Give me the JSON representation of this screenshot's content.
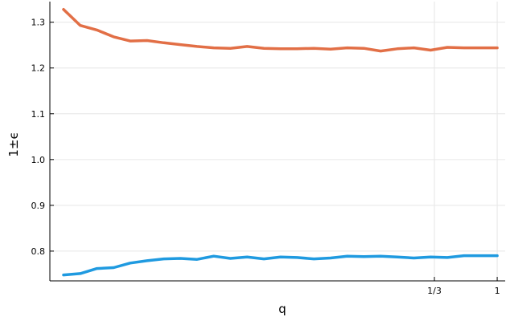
{
  "chart_data": {
    "type": "line",
    "xlabel": "q",
    "ylabel": "1±ϵ",
    "x_scale": "log",
    "x": [
      0.000508,
      0.000681,
      0.000911,
      0.00122,
      0.00163,
      0.00219,
      0.00293,
      0.00392,
      0.00525,
      0.00703,
      0.00941,
      0.0126,
      0.0169,
      0.0226,
      0.0302,
      0.0405,
      0.0542,
      0.0725,
      0.0971,
      0.13,
      0.174,
      0.233,
      0.312,
      0.418,
      0.559,
      0.749,
      1.0
    ],
    "xlim": [
      0.0004,
      1.15
    ],
    "xticks": [
      0.3333333333,
      1
    ],
    "xtick_labels": [
      "1/3",
      "1"
    ],
    "ylim": [
      0.735,
      1.345
    ],
    "yticks": [
      0.8,
      0.9,
      1.0,
      1.1,
      1.2,
      1.3
    ],
    "ytick_labels": [
      "0.8",
      "0.9",
      "1.0",
      "1.1",
      "1.2",
      "1.3"
    ],
    "grid": true,
    "legend": false,
    "series": [
      {
        "color": "#e26f46",
        "values": [
          1.328,
          1.293,
          1.283,
          1.268,
          1.259,
          1.26,
          1.255,
          1.251,
          1.247,
          1.244,
          1.243,
          1.247,
          1.243,
          1.242,
          1.242,
          1.243,
          1.241,
          1.244,
          1.243,
          1.237,
          1.242,
          1.244,
          1.239,
          1.245,
          1.244,
          1.244,
          1.244
        ]
      },
      {
        "color": "#1f9ae0",
        "values": [
          0.748,
          0.751,
          0.762,
          0.764,
          0.774,
          0.779,
          0.783,
          0.784,
          0.782,
          0.789,
          0.784,
          0.787,
          0.783,
          0.787,
          0.786,
          0.783,
          0.785,
          0.789,
          0.788,
          0.789,
          0.787,
          0.785,
          0.787,
          0.786,
          0.79,
          0.79,
          0.79
        ]
      }
    ]
  }
}
